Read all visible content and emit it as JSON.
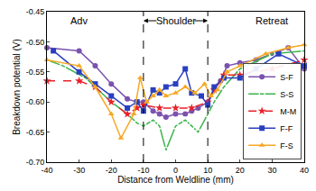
{
  "chart_data": {
    "type": "line",
    "x_label": "Distance from Weldline (mm)",
    "y_label": "Breakdown potential (V)",
    "xlim": [
      -40,
      40
    ],
    "xticks": [
      -40,
      -30,
      -20,
      -10,
      0,
      10,
      20,
      30,
      40
    ],
    "ylim": [
      -0.7,
      -0.45
    ],
    "yticks": [
      {
        "value": -0.7,
        "label": "-0.70"
      },
      {
        "value": -0.65,
        "label": "-0.65"
      },
      {
        "value": -0.6,
        "label": "-0.60"
      },
      {
        "value": -0.55,
        "label": "-0.55"
      },
      {
        "value": -0.5,
        "label": "-0.50"
      },
      {
        "value": -0.45,
        "label": "-0.45"
      }
    ],
    "grid": false,
    "legend": "lower right",
    "vlines": [
      -10,
      10
    ],
    "annotations": [
      {
        "text": "Adv",
        "x": -30,
        "y": -0.465
      },
      {
        "text": "Shoulder",
        "x": 0,
        "y": -0.465
      },
      {
        "text": "Retreat",
        "x": 30,
        "y": -0.465
      }
    ],
    "series": [
      {
        "name": "S-F",
        "color": "#7b52ae",
        "marker": "circle",
        "line_style": "solid",
        "x": [
          -40,
          -30,
          -25,
          -20,
          -15,
          -12,
          -10,
          -7,
          -5,
          -3,
          0,
          3,
          5,
          7,
          10,
          12,
          14,
          16,
          20,
          25,
          30,
          35,
          40
        ],
        "values": [
          -0.51,
          -0.515,
          -0.54,
          -0.57,
          -0.595,
          -0.6,
          -0.6,
          -0.615,
          -0.62,
          -0.625,
          -0.62,
          -0.62,
          -0.615,
          -0.61,
          -0.6,
          -0.58,
          -0.565,
          -0.54,
          -0.535,
          -0.53,
          -0.52,
          -0.51,
          -0.545
        ]
      },
      {
        "name": "S-S",
        "color": "#3cb44b",
        "marker": "circle-open",
        "line_style": "solid",
        "x": [
          -40,
          -35,
          -28,
          -20,
          -15,
          -12,
          -10,
          -7,
          -5,
          -3,
          0,
          3,
          5,
          7,
          10,
          12,
          15,
          20,
          30,
          40
        ],
        "values": [
          -0.53,
          -0.54,
          -0.56,
          -0.6,
          -0.62,
          -0.635,
          -0.64,
          -0.63,
          -0.64,
          -0.68,
          -0.64,
          -0.63,
          -0.64,
          -0.65,
          -0.62,
          -0.6,
          -0.575,
          -0.545,
          -0.52,
          -0.515
        ]
      },
      {
        "name": "M-M",
        "color": "#e8202a",
        "marker": "star",
        "line_style": "dash",
        "x": [
          -40,
          -30,
          -25,
          -20,
          -15,
          -12,
          -10,
          -5,
          0,
          5,
          10,
          12,
          15,
          20,
          30,
          40
        ],
        "values": [
          -0.565,
          -0.565,
          -0.575,
          -0.6,
          -0.62,
          -0.61,
          -0.605,
          -0.61,
          -0.61,
          -0.61,
          -0.6,
          -0.58,
          -0.555,
          -0.555,
          -0.545,
          -0.53
        ]
      },
      {
        "name": "F-F",
        "color": "#2a3fbf",
        "marker": "square",
        "line_style": "solid",
        "x": [
          -38,
          -30,
          -25,
          -20,
          -15,
          -12,
          -10,
          -7,
          -5,
          -3,
          0,
          3,
          5,
          8,
          10,
          12,
          15,
          20,
          25,
          32,
          40
        ],
        "values": [
          -0.515,
          -0.55,
          -0.57,
          -0.59,
          -0.61,
          -0.6,
          -0.615,
          -0.58,
          -0.585,
          -0.575,
          -0.57,
          -0.545,
          -0.585,
          -0.59,
          -0.605,
          -0.575,
          -0.56,
          -0.56,
          -0.545,
          -0.52,
          -0.54
        ]
      },
      {
        "name": "F-S",
        "color": "#f7a823",
        "marker": "triangle-up",
        "line_style": "solid",
        "x": [
          -40,
          -30,
          -25,
          -20,
          -17,
          -13,
          -11,
          -9,
          -7,
          -5,
          -3,
          0,
          3,
          6,
          9,
          11,
          13,
          16,
          20,
          28,
          35,
          40
        ],
        "values": [
          -0.53,
          -0.54,
          -0.575,
          -0.62,
          -0.66,
          -0.62,
          -0.56,
          -0.6,
          -0.59,
          -0.58,
          -0.59,
          -0.585,
          -0.575,
          -0.585,
          -0.57,
          -0.59,
          -0.58,
          -0.55,
          -0.54,
          -0.52,
          -0.51,
          -0.505
        ]
      }
    ]
  }
}
